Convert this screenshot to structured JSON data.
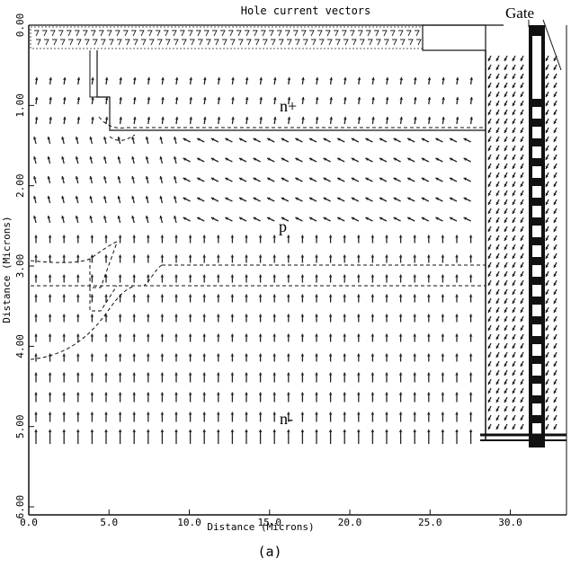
{
  "figure": {
    "title": "Hole current vectors",
    "caption": "(a)",
    "xlabel": "Distance (Microns)",
    "ylabel": "Distance (Microns)",
    "x_ticks": [
      "0.0",
      "5.0",
      "10.0",
      "15.0",
      "20.0",
      "25.0",
      "30.0"
    ],
    "y_ticks": [
      "0.00",
      "1.00",
      "2.00",
      "3.00",
      "4.00",
      "5.00",
      "6.00"
    ],
    "x_range": [
      0,
      33.5
    ],
    "y_range": [
      0,
      6.1
    ],
    "labels": {
      "n_plus": "n+",
      "p": "p",
      "n_minus": "n-",
      "gate": "Gate"
    },
    "colors": {
      "ink": "#111111",
      "background": "#ffffff"
    }
  }
}
